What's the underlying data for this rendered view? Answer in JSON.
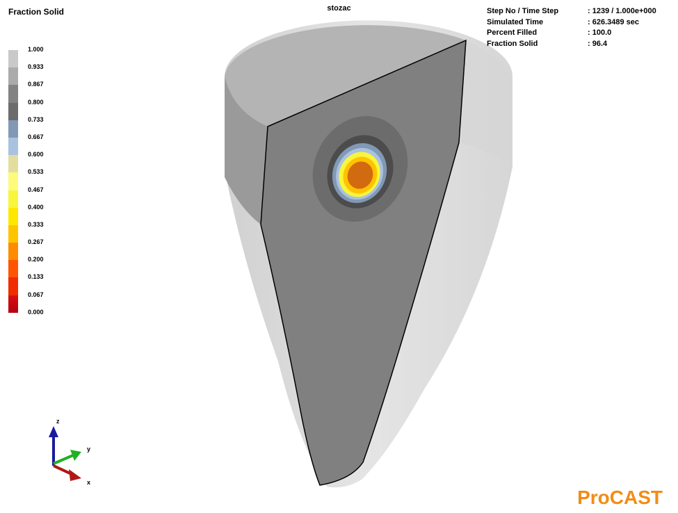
{
  "legend": {
    "title": "Fraction Solid",
    "entries": [
      {
        "label": "1.000",
        "color": "#c9c9c9"
      },
      {
        "label": "0.933",
        "color": "#ababab"
      },
      {
        "label": "0.867",
        "color": "#838383"
      },
      {
        "label": "0.800",
        "color": "#6c6c6c"
      },
      {
        "label": "0.733",
        "color": "#8199b4"
      },
      {
        "label": "0.667",
        "color": "#a9c2e0"
      },
      {
        "label": "0.600",
        "color": "#e3dea0"
      },
      {
        "label": "0.533",
        "color": "#fdfb7a"
      },
      {
        "label": "0.467",
        "color": "#f9f53c"
      },
      {
        "label": "0.400",
        "color": "#ffe800"
      },
      {
        "label": "0.333",
        "color": "#ffc400"
      },
      {
        "label": "0.267",
        "color": "#ff8c00"
      },
      {
        "label": "0.200",
        "color": "#ff5500"
      },
      {
        "label": "0.133",
        "color": "#f02c00"
      },
      {
        "label": "0.067",
        "color": "#d80f10"
      }
    ],
    "min_label": "0.000",
    "min_color": "#b50012"
  },
  "model_title": "stozac",
  "stats": [
    {
      "label": "Step No / Time Step",
      "value": ": 1239  / 1.000e+000"
    },
    {
      "label": "Simulated Time",
      "value": ": 626.3489 sec"
    },
    {
      "label": "Percent Filled",
      "value": ": 100.0"
    },
    {
      "label": "Fraction Solid",
      "value": ": 96.4"
    }
  ],
  "axes": {
    "z": "z",
    "y": "y",
    "x": "x"
  },
  "logo": "ProCAST",
  "colors": {
    "section_face": "#808080",
    "shell": "#d0d0d0",
    "top_cap": "#b5b5b5",
    "logo": "#f28c17",
    "axis_z": "#1a1aa0",
    "axis_y": "#22b022",
    "axis_x": "#b01818"
  },
  "icons": [
    "axis-triad-icon"
  ]
}
